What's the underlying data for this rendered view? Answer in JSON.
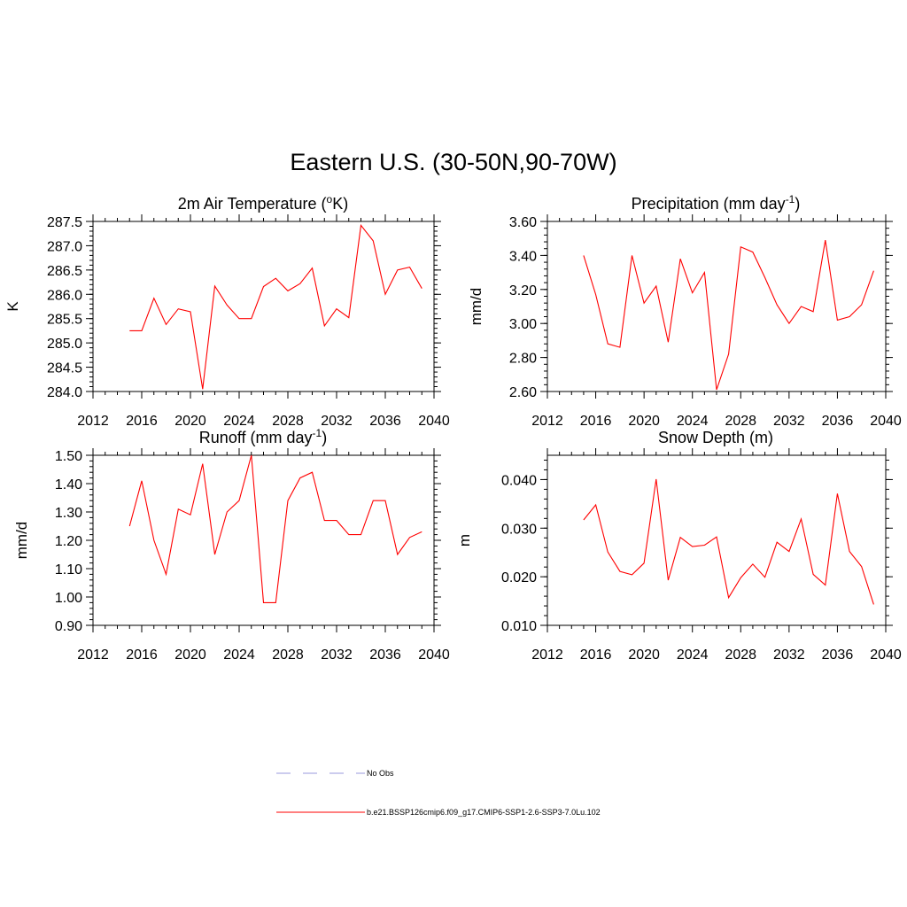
{
  "title": "Eastern U.S. (30-50N,90-70W)",
  "colors": {
    "model": "#ff0000",
    "obs": "#9999dd"
  },
  "legend": {
    "items": [
      {
        "label": "No Obs",
        "style": "dashed",
        "color": "#9999dd"
      },
      {
        "label": "b.e21.BSSP126cmip6.f09_g17.CMIP6-SSP1-2.6-SSP3-7.0Lu.102",
        "style": "solid",
        "color": "#ff0000"
      }
    ]
  },
  "chart_data": [
    {
      "type": "line",
      "title_main": "2m Air Temperature (",
      "title_sup": "o",
      "title_tail": "K)",
      "ylabel": "K",
      "xlim": [
        2012,
        2040
      ],
      "ylim": [
        284.0,
        287.5
      ],
      "xticks": [
        2012,
        2016,
        2020,
        2024,
        2028,
        2032,
        2036,
        2040
      ],
      "yticks": [
        "284.0",
        "284.5",
        "285.0",
        "285.5",
        "286.0",
        "286.5",
        "287.0",
        "287.5"
      ],
      "x": [
        2015,
        2016,
        2017,
        2018,
        2019,
        2020,
        2021,
        2022,
        2023,
        2024,
        2025,
        2026,
        2027,
        2028,
        2029,
        2030,
        2031,
        2032,
        2033,
        2034,
        2035,
        2036,
        2037,
        2038,
        2039
      ],
      "values": [
        285.25,
        285.25,
        285.92,
        285.38,
        285.7,
        285.64,
        284.05,
        286.17,
        285.78,
        285.5,
        285.5,
        286.16,
        286.33,
        286.07,
        286.22,
        286.54,
        285.35,
        285.7,
        285.52,
        287.42,
        287.1,
        286.0,
        286.5,
        286.56,
        286.12
      ]
    },
    {
      "type": "line",
      "title_main": "Precipitation (mm day",
      "title_sup": "-1",
      "title_tail": ")",
      "ylabel": "mm/d",
      "xlim": [
        2012,
        2040
      ],
      "ylim": [
        2.6,
        3.6
      ],
      "xticks": [
        2012,
        2016,
        2020,
        2024,
        2028,
        2032,
        2036,
        2040
      ],
      "yticks": [
        "2.60",
        "2.80",
        "3.00",
        "3.20",
        "3.40",
        "3.60"
      ],
      "x": [
        2015,
        2016,
        2017,
        2018,
        2019,
        2020,
        2021,
        2022,
        2023,
        2024,
        2025,
        2026,
        2027,
        2028,
        2029,
        2030,
        2031,
        2032,
        2033,
        2034,
        2035,
        2036,
        2037,
        2038,
        2039
      ],
      "values": [
        3.4,
        3.17,
        2.88,
        2.86,
        3.4,
        3.12,
        3.22,
        2.89,
        3.38,
        3.18,
        3.3,
        2.61,
        2.82,
        3.45,
        3.42,
        3.27,
        3.11,
        3.0,
        3.1,
        3.07,
        3.49,
        3.02,
        3.04,
        3.11,
        3.31
      ]
    },
    {
      "type": "line",
      "title_main": "Runoff (mm day",
      "title_sup": "-1",
      "title_tail": ")",
      "ylabel": "mm/d",
      "xlim": [
        2012,
        2040
      ],
      "ylim": [
        0.9,
        1.5
      ],
      "xticks": [
        2012,
        2016,
        2020,
        2024,
        2028,
        2032,
        2036,
        2040
      ],
      "yticks": [
        "0.90",
        "1.00",
        "1.10",
        "1.20",
        "1.30",
        "1.40",
        "1.50"
      ],
      "x": [
        2015,
        2016,
        2017,
        2018,
        2019,
        2020,
        2021,
        2022,
        2023,
        2024,
        2025,
        2026,
        2027,
        2028,
        2029,
        2030,
        2031,
        2032,
        2033,
        2034,
        2035,
        2036,
        2037,
        2038,
        2039
      ],
      "values": [
        1.25,
        1.41,
        1.2,
        1.08,
        1.31,
        1.29,
        1.47,
        1.15,
        1.3,
        1.34,
        1.5,
        0.98,
        0.98,
        1.34,
        1.42,
        1.44,
        1.27,
        1.27,
        1.22,
        1.22,
        1.34,
        1.34,
        1.15,
        1.21,
        1.23
      ]
    },
    {
      "type": "line",
      "title_main": "Snow Depth (m)",
      "title_sup": "",
      "title_tail": "",
      "ylabel": "m",
      "xlim": [
        2012,
        2040
      ],
      "ylim": [
        0.01,
        0.045
      ],
      "xticks": [
        2012,
        2016,
        2020,
        2024,
        2028,
        2032,
        2036,
        2040
      ],
      "yticks": [
        "0.010",
        "0.020",
        "0.030",
        "0.040"
      ],
      "ytick_values": [
        0.01,
        0.02,
        0.03,
        0.04
      ],
      "x": [
        2015,
        2016,
        2017,
        2018,
        2019,
        2020,
        2021,
        2022,
        2023,
        2024,
        2025,
        2026,
        2027,
        2028,
        2029,
        2030,
        2031,
        2032,
        2033,
        2034,
        2035,
        2036,
        2037,
        2038,
        2039
      ],
      "values": [
        0.0317,
        0.0348,
        0.0251,
        0.0211,
        0.0204,
        0.0228,
        0.0401,
        0.0193,
        0.0281,
        0.0262,
        0.0265,
        0.0282,
        0.0157,
        0.0198,
        0.0226,
        0.0199,
        0.0271,
        0.0252,
        0.0319,
        0.0205,
        0.0183,
        0.0371,
        0.0252,
        0.0221,
        0.0143
      ]
    }
  ]
}
